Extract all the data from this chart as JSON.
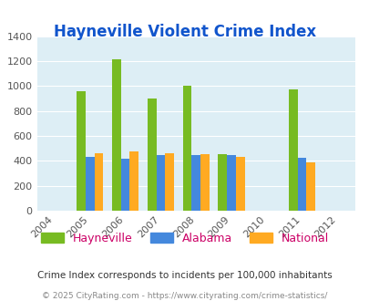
{
  "title": "Hayneville Violent Crime Index",
  "years": [
    2004,
    2005,
    2006,
    2007,
    2008,
    2009,
    2010,
    2011,
    2012
  ],
  "data_years": [
    2005,
    2006,
    2007,
    2008,
    2009,
    2011
  ],
  "hayneville": [
    960,
    1215,
    900,
    1000,
    450,
    970
  ],
  "alabama": [
    430,
    420,
    447,
    447,
    447,
    422
  ],
  "national": [
    463,
    473,
    463,
    450,
    432,
    390
  ],
  "bar_width": 0.25,
  "colors": {
    "hayneville": "#77bb22",
    "alabama": "#4488dd",
    "national": "#ffaa22"
  },
  "ylim": [
    0,
    1400
  ],
  "yticks": [
    0,
    200,
    400,
    600,
    800,
    1000,
    1200,
    1400
  ],
  "bg_color": "#ddeef5",
  "title_color": "#1155cc",
  "legend_text_color": "#cc0066",
  "footnote1": "Crime Index corresponds to incidents per 100,000 inhabitants",
  "footnote2": "© 2025 CityRating.com - https://www.cityrating.com/crime-statistics/",
  "legend_labels": [
    "Hayneville",
    "Alabama",
    "National"
  ]
}
